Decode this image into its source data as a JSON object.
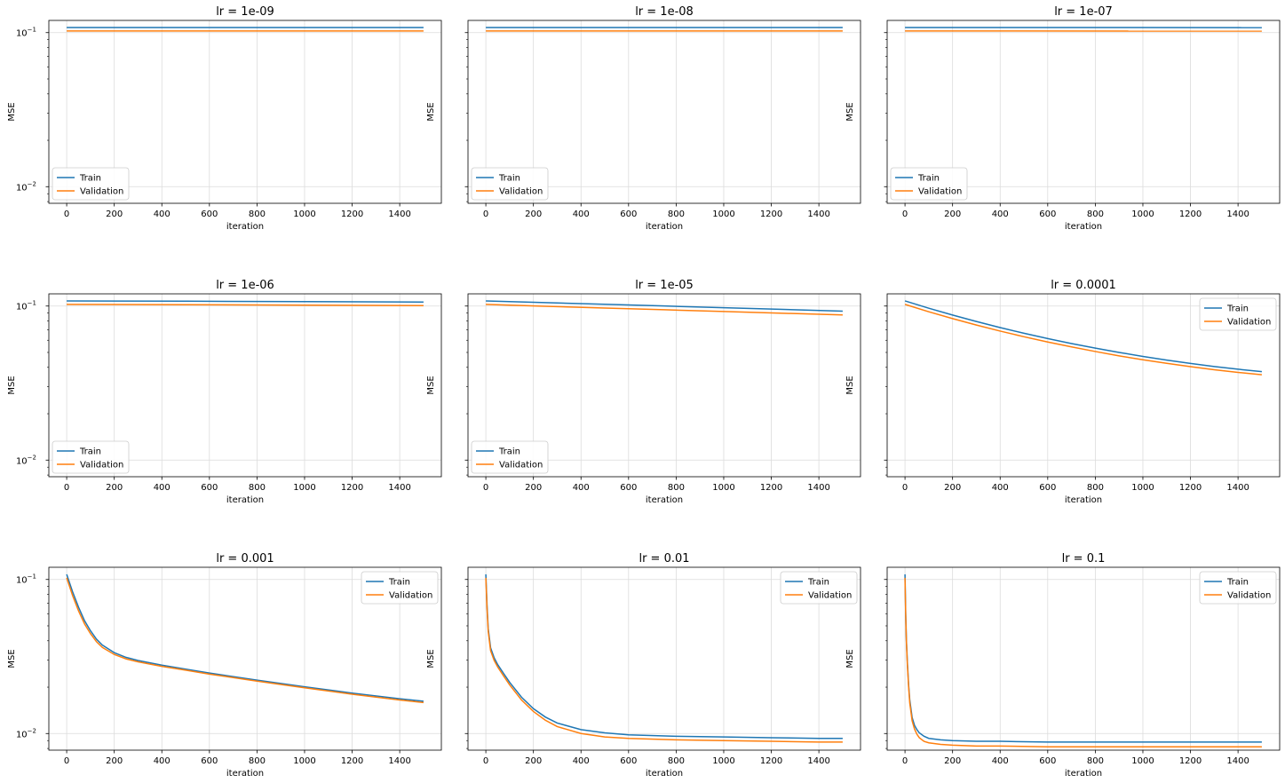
{
  "chart_data": {
    "type": "line",
    "layout": "3x3 grid of subplots, shared y axis (log scale), grid on",
    "y_scale": "log",
    "ylim": [
      0.0078,
      0.12
    ],
    "xlim": [
      -75,
      1575
    ],
    "x_ticks": [
      0,
      200,
      400,
      600,
      800,
      1000,
      1200,
      1400
    ],
    "y_ticks": [
      {
        "value": 0.1,
        "base": "10",
        "exp": "−1"
      },
      {
        "value": 0.01,
        "base": "10",
        "exp": "−2"
      }
    ],
    "xlabel": "iteration",
    "ylabel": "MSE",
    "grid": true,
    "colors": {
      "Train": "#1f77b4",
      "Validation": "#ff7f0e"
    },
    "legend_labels": [
      "Train",
      "Validation"
    ],
    "subplots": [
      {
        "title": "lr = 1e-09",
        "legend": "lower-left",
        "series": [
          {
            "name": "Train",
            "x": [
              0,
              1500
            ],
            "y": [
              0.108,
              0.108
            ]
          },
          {
            "name": "Validation",
            "x": [
              0,
              1500
            ],
            "y": [
              0.1025,
              0.1025
            ]
          }
        ]
      },
      {
        "title": "lr = 1e-08",
        "legend": "lower-left",
        "series": [
          {
            "name": "Train",
            "x": [
              0,
              1500
            ],
            "y": [
              0.108,
              0.108
            ]
          },
          {
            "name": "Validation",
            "x": [
              0,
              1500
            ],
            "y": [
              0.1025,
              0.1025
            ]
          }
        ]
      },
      {
        "title": "lr = 1e-07",
        "legend": "lower-left",
        "series": [
          {
            "name": "Train",
            "x": [
              0,
              1500
            ],
            "y": [
              0.108,
              0.1078
            ]
          },
          {
            "name": "Validation",
            "x": [
              0,
              1500
            ],
            "y": [
              0.1025,
              0.1023
            ]
          }
        ]
      },
      {
        "title": "lr = 1e-06",
        "legend": "lower-left",
        "series": [
          {
            "name": "Train",
            "x": [
              0,
              500,
              1000,
              1500
            ],
            "y": [
              0.108,
              0.1075,
              0.1068,
              0.1062
            ]
          },
          {
            "name": "Validation",
            "x": [
              0,
              500,
              1000,
              1500
            ],
            "y": [
              0.1025,
              0.102,
              0.1013,
              0.1007
            ]
          }
        ]
      },
      {
        "title": "lr = 1e-05",
        "legend": "lower-left",
        "series": [
          {
            "name": "Train",
            "x": [
              0,
              250,
              500,
              750,
              1000,
              1250,
              1500
            ],
            "y": [
              0.108,
              0.1052,
              0.1026,
              0.1001,
              0.0976,
              0.0951,
              0.0926
            ]
          },
          {
            "name": "Validation",
            "x": [
              0,
              250,
              500,
              750,
              1000,
              1250,
              1500
            ],
            "y": [
              0.1025,
              0.0997,
              0.0971,
              0.0946,
              0.0922,
              0.0898,
              0.0875
            ]
          }
        ]
      },
      {
        "title": "lr = 0.0001",
        "legend": "upper-right",
        "series": [
          {
            "name": "Train",
            "x": [
              0,
              100,
              200,
              300,
              400,
              500,
              600,
              700,
              800,
              900,
              1000,
              1100,
              1200,
              1300,
              1400,
              1500
            ],
            "y": [
              0.108,
              0.0968,
              0.0874,
              0.0794,
              0.0725,
              0.0666,
              0.0615,
              0.0571,
              0.0533,
              0.05,
              0.0471,
              0.0446,
              0.0424,
              0.0405,
              0.0389,
              0.0375
            ]
          },
          {
            "name": "Validation",
            "x": [
              0,
              100,
              200,
              300,
              400,
              500,
              600,
              700,
              800,
              900,
              1000,
              1100,
              1200,
              1300,
              1400,
              1500
            ],
            "y": [
              0.1025,
              0.0918,
              0.0829,
              0.0753,
              0.0688,
              0.0632,
              0.0584,
              0.0543,
              0.0507,
              0.0475,
              0.0448,
              0.0425,
              0.0404,
              0.0386,
              0.0371,
              0.0358
            ]
          }
        ]
      },
      {
        "title": "lr = 0.001",
        "legend": "upper-right",
        "series": [
          {
            "name": "Train",
            "x": [
              0,
              25,
              50,
              75,
              100,
              125,
              150,
              200,
              250,
              300,
              400,
              500,
              600,
              800,
              1000,
              1200,
              1400,
              1500
            ],
            "y": [
              0.108,
              0.083,
              0.066,
              0.054,
              0.0465,
              0.041,
              0.0375,
              0.0335,
              0.0312,
              0.0298,
              0.0278,
              0.0262,
              0.0247,
              0.0222,
              0.0201,
              0.0183,
              0.0168,
              0.0162
            ]
          },
          {
            "name": "Validation",
            "x": [
              0,
              25,
              50,
              75,
              100,
              125,
              150,
              200,
              250,
              300,
              400,
              500,
              600,
              800,
              1000,
              1200,
              1400,
              1500
            ],
            "y": [
              0.1025,
              0.0785,
              0.0625,
              0.0515,
              0.0445,
              0.0395,
              0.0362,
              0.0326,
              0.0305,
              0.0292,
              0.0273,
              0.0258,
              0.0243,
              0.0219,
              0.0198,
              0.018,
              0.0165,
              0.0159
            ]
          }
        ]
      },
      {
        "title": "lr = 0.01",
        "legend": "upper-right",
        "series": [
          {
            "name": "Train",
            "x": [
              0,
              5,
              10,
              20,
              35,
              50,
              75,
              100,
              150,
              200,
              250,
              300,
              400,
              500,
              600,
              800,
              1000,
              1200,
              1400,
              1500
            ],
            "y": [
              0.108,
              0.068,
              0.048,
              0.036,
              0.031,
              0.028,
              0.0245,
              0.0215,
              0.0172,
              0.0145,
              0.0128,
              0.0117,
              0.0106,
              0.0101,
              0.0098,
              0.0096,
              0.0095,
              0.0094,
              0.0093,
              0.0093
            ]
          },
          {
            "name": "Validation",
            "x": [
              0,
              5,
              10,
              20,
              35,
              50,
              75,
              100,
              150,
              200,
              250,
              300,
              400,
              500,
              600,
              800,
              1000,
              1200,
              1400,
              1500
            ],
            "y": [
              0.1025,
              0.065,
              0.046,
              0.0345,
              0.0298,
              0.027,
              0.0236,
              0.0207,
              0.0165,
              0.0139,
              0.0122,
              0.0111,
              0.01,
              0.0095,
              0.0093,
              0.0091,
              0.009,
              0.0089,
              0.0088,
              0.0088
            ]
          }
        ]
      },
      {
        "title": "lr = 0.1",
        "legend": "upper-right",
        "series": [
          {
            "name": "Train",
            "x": [
              0,
              3,
              6,
              10,
              15,
              20,
              30,
              40,
              50,
              60,
              80,
              100,
              150,
              200,
              300,
              400,
              600,
              800,
              1000,
              1200,
              1400,
              1500
            ],
            "y": [
              0.108,
              0.06,
              0.04,
              0.029,
              0.021,
              0.0165,
              0.0127,
              0.0113,
              0.0106,
              0.0101,
              0.0096,
              0.0093,
              0.0091,
              0.009,
              0.0089,
              0.0089,
              0.0088,
              0.0088,
              0.0088,
              0.0088,
              0.0088,
              0.0088
            ]
          },
          {
            "name": "Validation",
            "x": [
              0,
              3,
              6,
              10,
              15,
              20,
              30,
              40,
              50,
              60,
              80,
              100,
              150,
              200,
              300,
              400,
              600,
              800,
              1000,
              1200,
              1400,
              1500
            ],
            "y": [
              0.1025,
              0.058,
              0.039,
              0.028,
              0.0203,
              0.0158,
              0.0121,
              0.0107,
              0.0099,
              0.0094,
              0.0089,
              0.0087,
              0.0085,
              0.0084,
              0.0083,
              0.0083,
              0.0082,
              0.0082,
              0.0082,
              0.0082,
              0.0082,
              0.0082
            ]
          }
        ]
      }
    ]
  }
}
